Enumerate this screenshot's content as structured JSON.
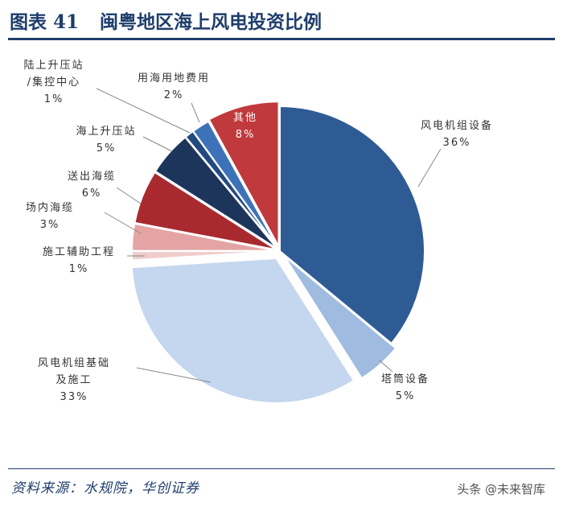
{
  "header": {
    "figure_no": "图表 41",
    "title": "闽粤地区海上风电投资比例"
  },
  "footer": {
    "source": "资料来源：水规院，华创证券",
    "watermark": "头条 @未来智库"
  },
  "chart_data": {
    "type": "pie",
    "title": "闽粤地区海上风电投资比例",
    "slices": [
      {
        "label": "风电机组设备",
        "value": 36,
        "color": "#2e5b94"
      },
      {
        "label": "塔筒设备",
        "value": 5,
        "color": "#9fbbe0"
      },
      {
        "label": "风电机组基础及施工",
        "value": 33,
        "color": "#c5d6ef"
      },
      {
        "label": "施工辅助工程",
        "value": 1,
        "color": "#f0cccc"
      },
      {
        "label": "场内海缆",
        "value": 3,
        "color": "#e4a4a4"
      },
      {
        "label": "送出海缆",
        "value": 6,
        "color": "#a82a2f"
      },
      {
        "label": "海上升压站",
        "value": 5,
        "color": "#1d355b"
      },
      {
        "label": "陆上升压站/集控中心",
        "value": 1,
        "color": "#224a80"
      },
      {
        "label": "用海用地费用",
        "value": 2,
        "color": "#3e72b8"
      },
      {
        "label": "其他",
        "value": 8,
        "color": "#c0393d"
      }
    ],
    "labels": [
      {
        "lines": [
          "风电机组设备",
          "36%"
        ]
      },
      {
        "lines": [
          "塔筒设备",
          "5%"
        ]
      },
      {
        "lines": [
          "风电机组基础",
          "及施工",
          "33%"
        ]
      },
      {
        "lines": [
          "施工辅助工程",
          "1%"
        ]
      },
      {
        "lines": [
          "场内海缆",
          "3%"
        ]
      },
      {
        "lines": [
          "送出海缆",
          "6%"
        ]
      },
      {
        "lines": [
          "海上升压站",
          "5%"
        ]
      },
      {
        "lines": [
          "陆上升压站",
          "/集控中心",
          "1%"
        ]
      },
      {
        "lines": [
          "用海用地费用",
          "2%"
        ]
      },
      {
        "lines": [
          "其他",
          "8%"
        ]
      }
    ]
  }
}
